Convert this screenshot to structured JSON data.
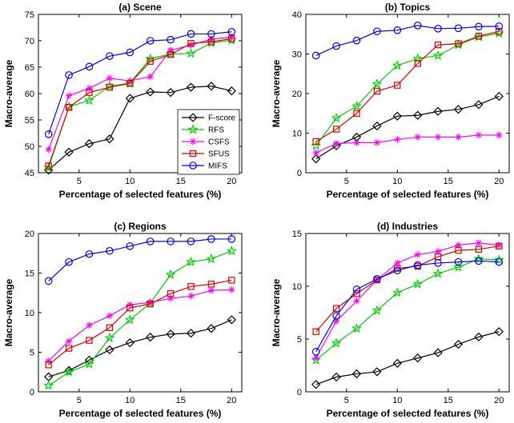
{
  "chart_data": [
    {
      "type": "line",
      "title": "(a) Scene",
      "xlabel": "Percentage of selected features (%)",
      "ylabel": "Macro-average",
      "xlim": [
        1,
        21
      ],
      "ylim": [
        45,
        75
      ],
      "xticks": [
        5,
        10,
        15,
        20
      ],
      "yticks": [
        45,
        50,
        55,
        60,
        65,
        70,
        75
      ],
      "legend_position": "lower-right",
      "x": [
        2,
        4,
        6,
        8,
        10,
        12,
        14,
        16,
        18,
        20
      ],
      "series": [
        {
          "name": "F-score",
          "color": "#000000",
          "marker": "diamond",
          "values": [
            45.5,
            48.9,
            50.5,
            51.4,
            59.1,
            60.3,
            60.2,
            61.2,
            61.4,
            60.5
          ]
        },
        {
          "name": "RFS",
          "color": "#00cc00",
          "marker": "star",
          "values": [
            46.0,
            57.5,
            58.7,
            61.4,
            62.0,
            66.6,
            67.5,
            67.6,
            69.6,
            70.1
          ]
        },
        {
          "name": "CSFS",
          "color": "#ff00ff",
          "marker": "asterisk",
          "values": [
            49.4,
            59.6,
            61.0,
            62.9,
            62.4,
            63.2,
            68.2,
            69.2,
            70.3,
            70.7
          ]
        },
        {
          "name": "SFUS",
          "color": "#dd0000",
          "marker": "square",
          "values": [
            46.3,
            57.4,
            60.2,
            61.2,
            61.9,
            66.1,
            67.4,
            69.5,
            69.8,
            70.4
          ]
        },
        {
          "name": "MIFS",
          "color": "#0000ff",
          "marker": "circle",
          "values": [
            52.3,
            63.5,
            65.1,
            67.1,
            67.8,
            70.0,
            70.2,
            71.3,
            71.3,
            71.7
          ]
        }
      ]
    },
    {
      "type": "line",
      "title": "(b) Topics",
      "xlabel": "Percentage of selected features (%)",
      "ylabel": "Macro-average",
      "xlim": [
        1,
        21
      ],
      "ylim": [
        0,
        40
      ],
      "xticks": [
        5,
        10,
        15,
        20
      ],
      "yticks": [
        0,
        10,
        20,
        30,
        40
      ],
      "x": [
        2,
        4,
        6,
        8,
        10,
        12,
        14,
        16,
        18,
        20
      ],
      "series": [
        {
          "name": "F-score",
          "color": "#000000",
          "marker": "diamond",
          "values": [
            3.5,
            6.8,
            9.0,
            11.8,
            14.3,
            14.5,
            15.5,
            16.0,
            17.2,
            19.3
          ]
        },
        {
          "name": "RFS",
          "color": "#00cc00",
          "marker": "star",
          "values": [
            6.8,
            13.8,
            16.8,
            22.4,
            27.1,
            28.8,
            29.6,
            32.3,
            34.3,
            35.2
          ]
        },
        {
          "name": "CSFS",
          "color": "#ff00ff",
          "marker": "asterisk",
          "values": [
            5.0,
            7.4,
            7.6,
            7.6,
            8.4,
            9.0,
            9.0,
            9.0,
            9.5,
            9.5
          ]
        },
        {
          "name": "SFUS",
          "color": "#dd0000",
          "marker": "square",
          "values": [
            7.9,
            11.0,
            15.0,
            20.6,
            22.1,
            27.6,
            32.3,
            32.6,
            34.5,
            35.7
          ]
        },
        {
          "name": "MIFS",
          "color": "#0000ff",
          "marker": "circle",
          "values": [
            29.6,
            32.0,
            33.4,
            35.7,
            36.0,
            37.2,
            36.4,
            36.5,
            36.9,
            37.0
          ]
        }
      ]
    },
    {
      "type": "line",
      "title": "(c) Regions",
      "xlabel": "Percentage of selected features (%)",
      "ylabel": "Macro-average",
      "xlim": [
        1,
        21
      ],
      "ylim": [
        0,
        20
      ],
      "xticks": [
        5,
        10,
        15,
        20
      ],
      "yticks": [
        0,
        5,
        10,
        15,
        20
      ],
      "x": [
        2,
        4,
        6,
        8,
        10,
        12,
        14,
        16,
        18,
        20
      ],
      "series": [
        {
          "name": "F-score",
          "color": "#000000",
          "marker": "diamond",
          "values": [
            1.9,
            2.7,
            4.0,
            5.3,
            6.2,
            6.9,
            7.3,
            7.4,
            8.0,
            9.1
          ]
        },
        {
          "name": "RFS",
          "color": "#00cc00",
          "marker": "star",
          "values": [
            0.8,
            2.5,
            3.5,
            6.8,
            9.1,
            11.2,
            14.8,
            16.4,
            16.8,
            17.8
          ]
        },
        {
          "name": "CSFS",
          "color": "#ff00ff",
          "marker": "asterisk",
          "values": [
            3.9,
            6.4,
            8.4,
            9.6,
            11.0,
            11.3,
            11.8,
            12.1,
            12.8,
            12.9
          ]
        },
        {
          "name": "SFUS",
          "color": "#dd0000",
          "marker": "square",
          "values": [
            3.4,
            5.5,
            6.5,
            8.1,
            10.6,
            11.1,
            12.4,
            13.3,
            13.6,
            14.1
          ]
        },
        {
          "name": "MIFS",
          "color": "#0000ff",
          "marker": "circle",
          "values": [
            14.0,
            16.4,
            17.4,
            17.8,
            18.4,
            19.0,
            19.0,
            19.0,
            19.3,
            19.3
          ]
        }
      ]
    },
    {
      "type": "line",
      "title": "(d) Industries",
      "xlabel": "Percentage of selected features (%)",
      "ylabel": "Macro-average",
      "xlim": [
        1,
        21
      ],
      "ylim": [
        0,
        15
      ],
      "xticks": [
        5,
        10,
        15,
        20
      ],
      "yticks": [
        0,
        5,
        10,
        15
      ],
      "x": [
        2,
        4,
        6,
        8,
        10,
        12,
        14,
        16,
        18,
        20
      ],
      "series": [
        {
          "name": "F-score",
          "color": "#000000",
          "marker": "diamond",
          "values": [
            0.7,
            1.4,
            1.7,
            1.9,
            2.7,
            3.2,
            3.7,
            4.5,
            5.2,
            5.7
          ]
        },
        {
          "name": "RFS",
          "color": "#00cc00",
          "marker": "star",
          "values": [
            3.0,
            4.6,
            6.0,
            7.7,
            9.4,
            10.2,
            11.2,
            11.8,
            12.6,
            12.5
          ]
        },
        {
          "name": "CSFS",
          "color": "#ff00ff",
          "marker": "asterisk",
          "values": [
            3.2,
            6.7,
            8.6,
            10.6,
            12.2,
            13.0,
            13.3,
            13.9,
            14.1,
            13.9
          ]
        },
        {
          "name": "SFUS",
          "color": "#dd0000",
          "marker": "square",
          "values": [
            5.7,
            7.9,
            9.3,
            10.6,
            11.7,
            11.9,
            12.8,
            13.4,
            13.5,
            13.8
          ]
        },
        {
          "name": "MIFS",
          "color": "#0000ff",
          "marker": "circle",
          "values": [
            3.8,
            7.2,
            9.7,
            10.7,
            11.5,
            12.0,
            12.2,
            12.3,
            12.4,
            12.3
          ]
        }
      ]
    }
  ]
}
